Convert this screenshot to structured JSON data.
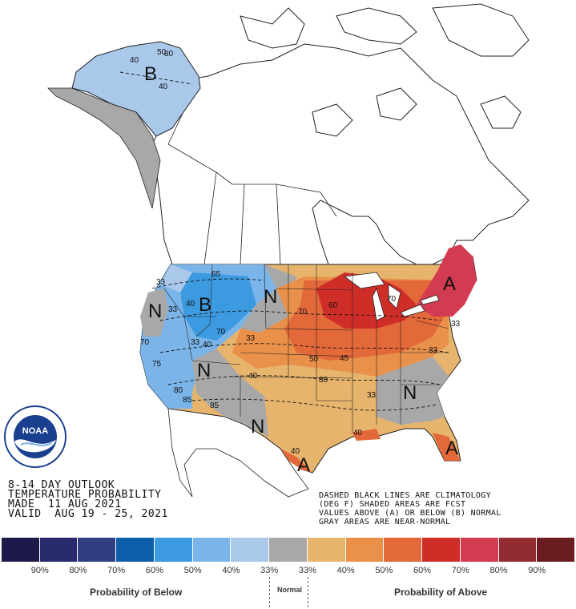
{
  "title": {
    "line1": "8-14 DAY OUTLOOK",
    "line2": "TEMPERATURE PROBABILITY",
    "line3": "MADE  11 AUG 2021",
    "line4": "VALID  AUG 19 - 25, 2021"
  },
  "notes": {
    "line1": "DASHED BLACK LINES ARE CLIMATOLOGY",
    "line2": "(DEG F) SHADED AREAS ARE FCST",
    "line3": "VALUES ABOVE (A) OR BELOW (B) NORMAL",
    "line4": "GRAY AREAS ARE NEAR-NORMAL"
  },
  "logo": {
    "text": "NOAA",
    "icon": "noaa-logo-icon"
  },
  "legend": {
    "colors": [
      "#1d1a4b",
      "#2a2a6e",
      "#2f3f82",
      "#0d5ea8",
      "#3c9ae0",
      "#7ab4e8",
      "#a9c8ea",
      "#a8a8a8",
      "#e6b46c",
      "#e9914a",
      "#e3683a",
      "#cf2d28",
      "#d33b50",
      "#912c33",
      "#6b1c20"
    ],
    "ticks": [
      "90%",
      "80%",
      "70%",
      "60%",
      "50%",
      "40%",
      "33%",
      "33%",
      "40%",
      "50%",
      "60%",
      "70%",
      "80%",
      "90%"
    ],
    "below_label": "Probability of Below",
    "normal_label": "Normal",
    "above_label": "Probability of Above"
  },
  "map_labels": {
    "letters": [
      "B",
      "B",
      "N",
      "N",
      "N",
      "N",
      "N",
      "A",
      "A",
      "A"
    ],
    "contours": [
      "50",
      "40",
      "40",
      "65",
      "33",
      "40",
      "70",
      "33",
      "40",
      "70",
      "70",
      "60",
      "33",
      "33",
      "70",
      "40",
      "33",
      "80",
      "75",
      "50",
      "80",
      "33",
      "40",
      "33",
      "40",
      "45",
      "85",
      "80",
      "85"
    ]
  }
}
